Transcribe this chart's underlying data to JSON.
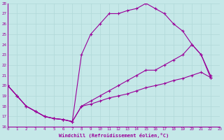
{
  "xlabel": "Windchill (Refroidissement éolien,°C)",
  "bg_color": "#c5e8e8",
  "line_color": "#990099",
  "grid_color": "#aad4d4",
  "xmin": 0,
  "xmax": 23,
  "ymin": 16,
  "ymax": 28,
  "xticks": [
    0,
    1,
    2,
    3,
    4,
    5,
    6,
    7,
    8,
    9,
    10,
    11,
    12,
    13,
    14,
    15,
    16,
    17,
    18,
    19,
    20,
    21,
    22,
    23
  ],
  "yticks": [
    16,
    17,
    18,
    19,
    20,
    21,
    22,
    23,
    24,
    25,
    26,
    27,
    28
  ],
  "series": [
    {
      "x": [
        0,
        1,
        2,
        3,
        4,
        5,
        6,
        7,
        8,
        9,
        10,
        11,
        12,
        13,
        14,
        15,
        16,
        17,
        18,
        19,
        20,
        21,
        22
      ],
      "y": [
        20,
        19,
        18,
        17.5,
        17,
        16.8,
        16.7,
        16.5,
        23,
        25,
        26,
        27,
        27,
        27.3,
        27.5,
        28,
        27.5,
        27,
        26,
        25.3,
        24,
        23,
        21
      ]
    },
    {
      "x": [
        0,
        1,
        2,
        3,
        4,
        5,
        6,
        7,
        8,
        9,
        10,
        11,
        12,
        13,
        14,
        15,
        16,
        17,
        18,
        19,
        20,
        21,
        22
      ],
      "y": [
        20,
        19,
        18,
        17.5,
        17,
        16.8,
        16.7,
        16.5,
        18,
        18.5,
        19,
        19.5,
        20,
        20.5,
        21,
        21.5,
        21.5,
        22,
        22.5,
        23,
        24,
        23,
        20.8
      ]
    },
    {
      "x": [
        0,
        1,
        2,
        3,
        4,
        5,
        6,
        7,
        8,
        9,
        10,
        11,
        12,
        13,
        14,
        15,
        16,
        17,
        18,
        19,
        20,
        21,
        22
      ],
      "y": [
        20,
        19,
        18,
        17.5,
        17,
        16.8,
        16.7,
        16.5,
        18,
        18.2,
        18.5,
        18.8,
        19,
        19.2,
        19.5,
        19.8,
        20,
        20.2,
        20.5,
        20.7,
        21,
        21.3,
        20.8
      ]
    }
  ]
}
